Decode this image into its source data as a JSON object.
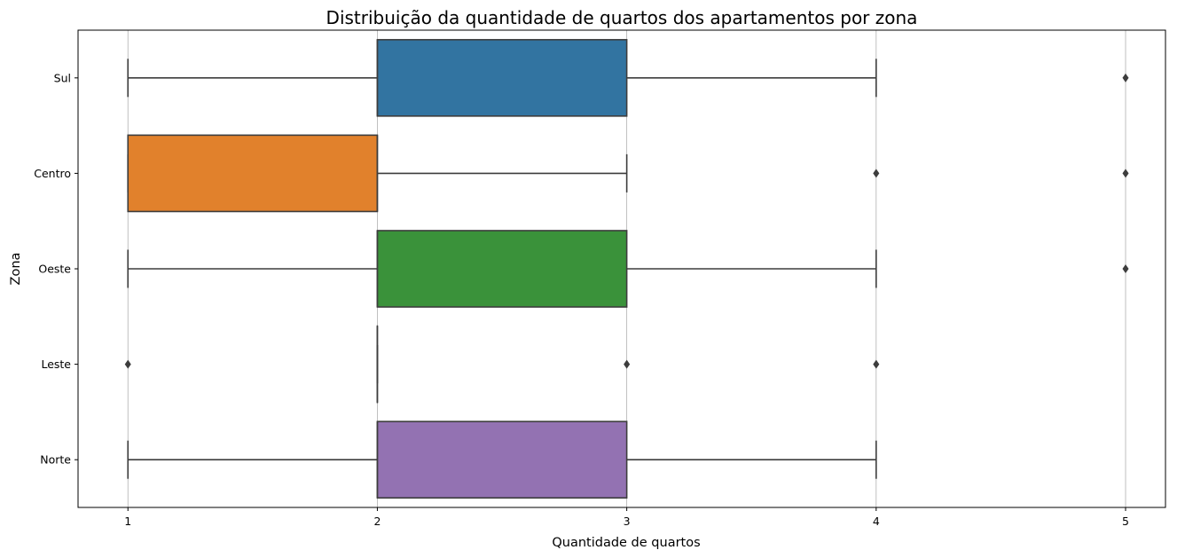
{
  "chart_data": {
    "type": "boxplot",
    "orientation": "horizontal",
    "title": "Distribuição da quantidade de quartos dos apartamentos por zona",
    "xlabel": "Quantidade de quartos",
    "ylabel": "Zona",
    "xlim": [
      0.8,
      5.16
    ],
    "xticks": [
      1,
      2,
      3,
      4,
      5
    ],
    "grid": "vertical",
    "categories": [
      "Sul",
      "Centro",
      "Oeste",
      "Leste",
      "Norte"
    ],
    "boxes": [
      {
        "category": "Sul",
        "color": "#3274a1",
        "whisker_low": 1,
        "q1": 2,
        "median": 2,
        "q3": 3,
        "whisker_high": 4,
        "outliers": [
          5
        ]
      },
      {
        "category": "Centro",
        "color": "#e1812c",
        "whisker_low": 1,
        "q1": 1,
        "median": 2,
        "q3": 2,
        "whisker_high": 3,
        "outliers": [
          4,
          5
        ]
      },
      {
        "category": "Oeste",
        "color": "#3a923a",
        "whisker_low": 1,
        "q1": 2,
        "median": 2,
        "q3": 3,
        "whisker_high": 4,
        "outliers": [
          5
        ]
      },
      {
        "category": "Leste",
        "color": "#c03d3e",
        "whisker_low": 2,
        "q1": 2,
        "median": 2,
        "q3": 2,
        "whisker_high": 2,
        "outliers": [
          1,
          3,
          4
        ]
      },
      {
        "category": "Norte",
        "color": "#9372b2",
        "whisker_low": 1,
        "q1": 2,
        "median": 2,
        "q3": 3,
        "whisker_high": 4,
        "outliers": []
      }
    ]
  }
}
